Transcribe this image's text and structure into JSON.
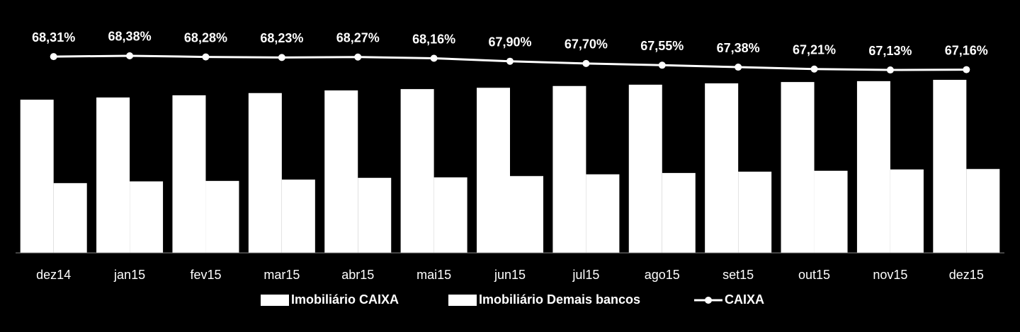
{
  "chart_data": {
    "type": "bar_line",
    "categories": [
      "dez14",
      "jan15",
      "fev15",
      "mar15",
      "abr15",
      "mai15",
      "jun15",
      "jul15",
      "ago15",
      "set15",
      "out15",
      "nov15",
      "dez15"
    ],
    "series": [
      {
        "name": "Imobiliário CAIXA",
        "type": "bar",
        "color": "#ffffff",
        "values": [
          347,
          352,
          357,
          362,
          368,
          371,
          374,
          378,
          381,
          384,
          387,
          389,
          392
        ]
      },
      {
        "name": "Imobiliário Demais bancos",
        "type": "bar",
        "color": "#ffffff",
        "values": [
          158,
          162,
          163,
          166,
          170,
          171,
          174,
          178,
          181,
          184,
          186,
          189,
          190
        ]
      },
      {
        "name": "CAIXA",
        "type": "line",
        "axis": "y2",
        "color": "#ffffff",
        "values": [
          68.31,
          68.38,
          68.28,
          68.23,
          68.27,
          68.16,
          67.9,
          67.7,
          67.55,
          67.38,
          67.21,
          67.13,
          67.16
        ],
        "value_labels": [
          "68,31%",
          "68,38%",
          "68,28%",
          "68,23%",
          "68,27%",
          "68,16%",
          "67,90%",
          "67,70%",
          "67,55%",
          "67,38%",
          "67,21%",
          "67,13%",
          "67,16%"
        ]
      }
    ],
    "ylim": [
      0,
      400
    ],
    "y2lim": [
      51,
      73.3
    ],
    "legend": "bottom"
  }
}
